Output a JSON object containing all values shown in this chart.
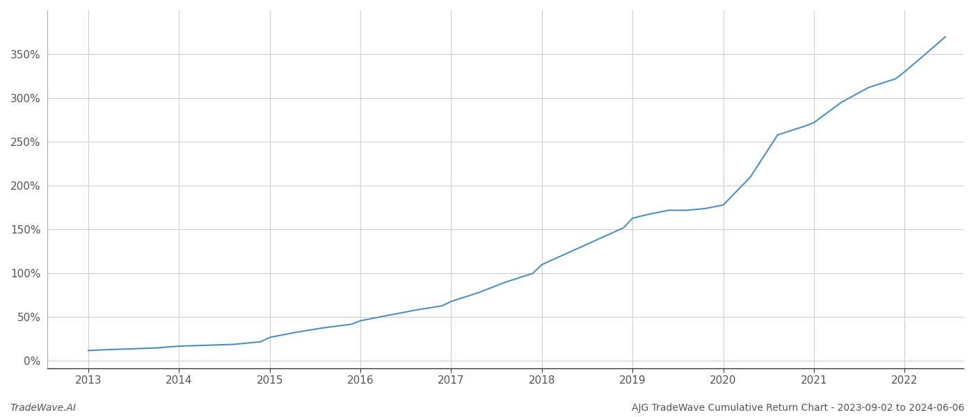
{
  "title": "AJG TradeWave Cumulative Return Chart - 2023-09-02 to 2024-06-06",
  "watermark": "TradeWave.AI",
  "line_color": "#4a90c4",
  "background_color": "#ffffff",
  "grid_color": "#cccccc",
  "x_ticks": [
    2013,
    2014,
    2015,
    2016,
    2017,
    2018,
    2019,
    2020,
    2021,
    2022
  ],
  "y_ticks": [
    0,
    50,
    100,
    150,
    200,
    250,
    300,
    350
  ],
  "xlim": [
    2012.55,
    2022.65
  ],
  "ylim": [
    -8,
    400
  ],
  "x_data": [
    2013.0,
    2013.2,
    2013.5,
    2013.75,
    2014.0,
    2014.3,
    2014.6,
    2014.9,
    2015.0,
    2015.3,
    2015.6,
    2015.9,
    2016.0,
    2016.3,
    2016.6,
    2016.9,
    2017.0,
    2017.3,
    2017.6,
    2017.9,
    2018.0,
    2018.3,
    2018.6,
    2018.9,
    2019.0,
    2019.2,
    2019.4,
    2019.6,
    2019.8,
    2020.0,
    2020.3,
    2020.6,
    2020.9,
    2021.0,
    2021.3,
    2021.6,
    2021.9,
    2022.0,
    2022.25,
    2022.45
  ],
  "y_data": [
    12,
    13,
    14,
    15,
    17,
    18,
    19,
    22,
    27,
    33,
    38,
    42,
    46,
    52,
    58,
    63,
    68,
    78,
    90,
    100,
    110,
    124,
    138,
    152,
    163,
    168,
    172,
    172,
    174,
    178,
    210,
    258,
    268,
    272,
    295,
    312,
    322,
    330,
    352,
    370
  ],
  "line_width": 1.5,
  "tick_fontsize": 11,
  "footer_fontsize": 10
}
